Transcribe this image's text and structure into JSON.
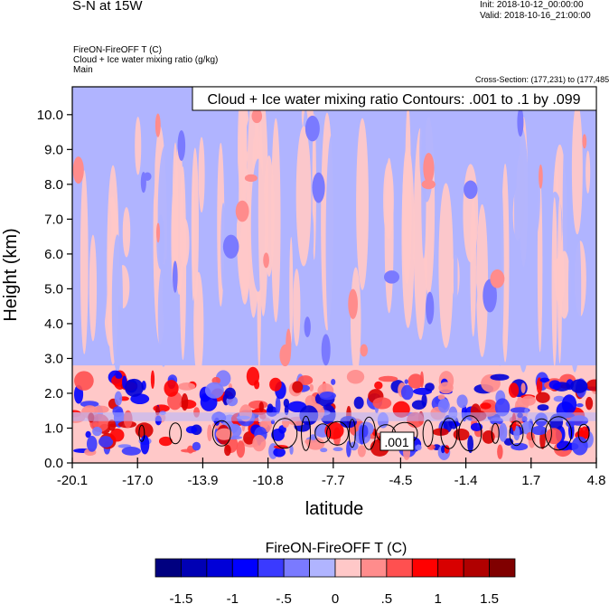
{
  "header": {
    "title": "S-N at 15W",
    "init": "Init: 2018-10-12_00:00:00",
    "valid": "Valid: 2018-10-16_21:00:00",
    "var_line": "FireON-FireOFF T   (C)",
    "var2_line": "Cloud + Ice water mixing ratio   (g/kg)",
    "var3_line": "Main",
    "cross_section": "Cross-Section: (177,231) to (177,485)"
  },
  "chart_data": {
    "type": "heatmap",
    "title": "Cloud + Ice water mixing ratio Contours: .001 to .1 by .099",
    "xlabel": "latitude",
    "ylabel": "Height (km)",
    "xlim": [
      -20.1,
      4.8
    ],
    "ylim": [
      0.0,
      10.8
    ],
    "x_ticks": [
      -20.1,
      -17.0,
      -13.9,
      -10.8,
      -7.7,
      -4.5,
      -1.4,
      1.7,
      4.8
    ],
    "x_tick_labels": [
      "-20.1",
      "-17.0",
      "-13.9",
      "-10.8",
      "-7.7",
      "-4.5",
      "-1.4",
      "1.7",
      "4.8"
    ],
    "y_ticks": [
      0,
      1,
      2,
      3,
      4,
      5,
      6,
      7,
      8,
      9,
      10
    ],
    "y_tick_labels": [
      "0.0",
      "1.0",
      "2.0",
      "3.0",
      "4.0",
      "5.0",
      "6.0",
      "7.0",
      "8.0",
      "9.0",
      "10.0"
    ],
    "contour_label": ".001",
    "colorbar": {
      "title": "FireON-FireOFF T  (C)",
      "levels": [
        -1.75,
        -1.5,
        -1.25,
        -1.0,
        -0.75,
        -0.5,
        -0.25,
        0,
        0.25,
        0.5,
        0.75,
        1.0,
        1.25,
        1.5,
        1.75
      ],
      "tick_labels": [
        "-1.5",
        "-1",
        "-.5",
        "0",
        ".5",
        "1",
        "1.5"
      ],
      "tick_values": [
        -1.5,
        -1.0,
        -0.5,
        0,
        0.5,
        1.0,
        1.5
      ],
      "colors": [
        "#000080",
        "#0000b4",
        "#0000d8",
        "#0000ff",
        "#3a3aff",
        "#7a7aff",
        "#b0b4ff",
        "#ffc8c8",
        "#ff8c8c",
        "#ff5050",
        "#ff0000",
        "#d80000",
        "#b00000",
        "#800000"
      ]
    },
    "field_bands": [
      {
        "height_range": [
          2.8,
          10.8
        ],
        "description_value": -0.1
      },
      {
        "height_range": [
          0.0,
          2.8
        ],
        "description_value": 0.1
      }
    ]
  }
}
